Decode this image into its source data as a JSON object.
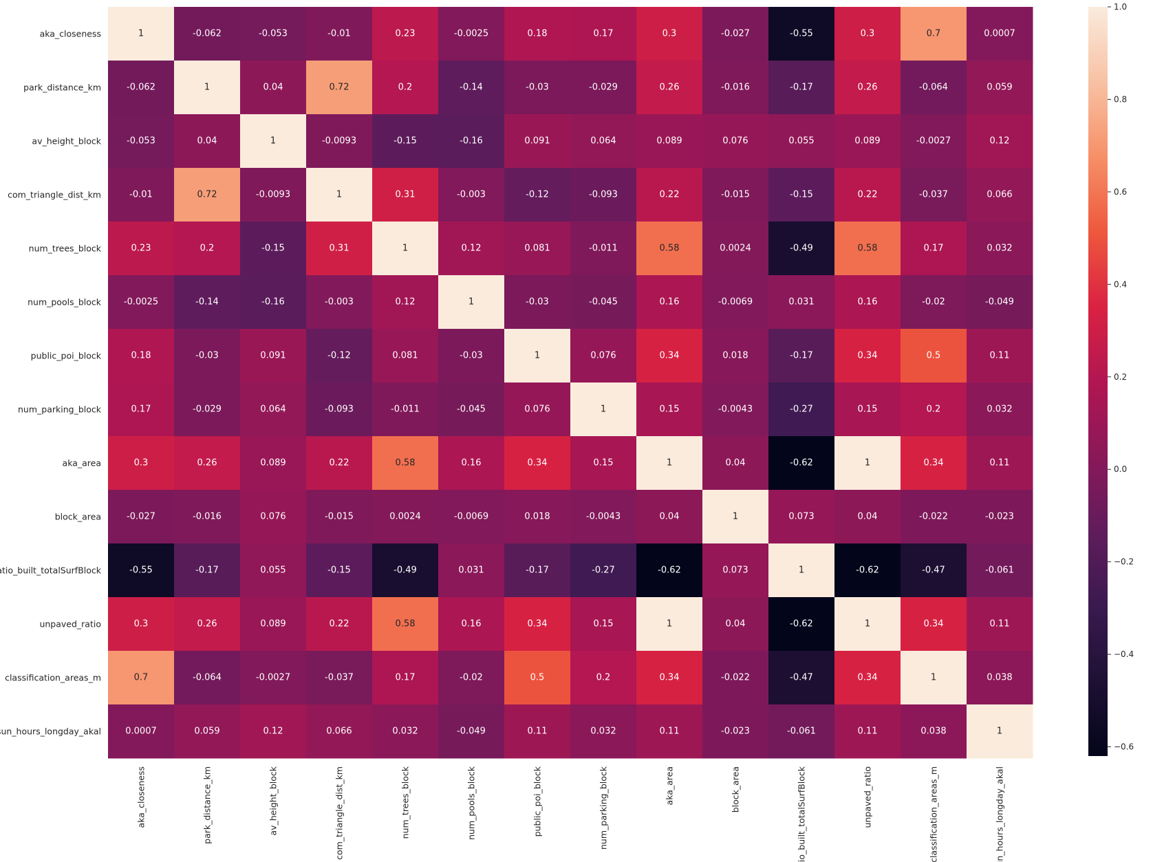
{
  "chart_data": {
    "type": "heatmap",
    "title": "",
    "xlabel": "",
    "ylabel": "",
    "variables": [
      "aka_closeness",
      "park_distance_km",
      "av_height_block",
      "com_triangle_dist_km",
      "num_trees_block",
      "num_pools_block",
      "public_poi_block",
      "num_parking_block",
      "aka_area",
      "block_area",
      "ratio_built_totalSurfBlock",
      "unpaved_ratio",
      "classification_areas_m",
      "sun_hours_longday_akal"
    ],
    "labels": [
      [
        "1",
        "-0.062",
        "-0.053",
        "-0.01",
        "0.23",
        "-0.0025",
        "0.18",
        "0.17",
        "0.3",
        "-0.027",
        "-0.55",
        "0.3",
        "0.7",
        "0.0007"
      ],
      [
        "-0.062",
        "1",
        "0.04",
        "0.72",
        "0.2",
        "-0.14",
        "-0.03",
        "-0.029",
        "0.26",
        "-0.016",
        "-0.17",
        "0.26",
        "-0.064",
        "0.059"
      ],
      [
        "-0.053",
        "0.04",
        "1",
        "-0.0093",
        "-0.15",
        "-0.16",
        "0.091",
        "0.064",
        "0.089",
        "0.076",
        "0.055",
        "0.089",
        "-0.0027",
        "0.12"
      ],
      [
        "-0.01",
        "0.72",
        "-0.0093",
        "1",
        "0.31",
        "-0.003",
        "-0.12",
        "-0.093",
        "0.22",
        "-0.015",
        "-0.15",
        "0.22",
        "-0.037",
        "0.066"
      ],
      [
        "0.23",
        "0.2",
        "-0.15",
        "0.31",
        "1",
        "0.12",
        "0.081",
        "-0.011",
        "0.58",
        "0.0024",
        "-0.49",
        "0.58",
        "0.17",
        "0.032"
      ],
      [
        "-0.0025",
        "-0.14",
        "-0.16",
        "-0.003",
        "0.12",
        "1",
        "-0.03",
        "-0.045",
        "0.16",
        "-0.0069",
        "0.031",
        "0.16",
        "-0.02",
        "-0.049"
      ],
      [
        "0.18",
        "-0.03",
        "0.091",
        "-0.12",
        "0.081",
        "-0.03",
        "1",
        "0.076",
        "0.34",
        "0.018",
        "-0.17",
        "0.34",
        "0.5",
        "0.11"
      ],
      [
        "0.17",
        "-0.029",
        "0.064",
        "-0.093",
        "-0.011",
        "-0.045",
        "0.076",
        "1",
        "0.15",
        "-0.0043",
        "-0.27",
        "0.15",
        "0.2",
        "0.032"
      ],
      [
        "0.3",
        "0.26",
        "0.089",
        "0.22",
        "0.58",
        "0.16",
        "0.34",
        "0.15",
        "1",
        "0.04",
        "-0.62",
        "1",
        "0.34",
        "0.11"
      ],
      [
        "-0.027",
        "-0.016",
        "0.076",
        "-0.015",
        "0.0024",
        "-0.0069",
        "0.018",
        "-0.0043",
        "0.04",
        "1",
        "0.073",
        "0.04",
        "-0.022",
        "-0.023"
      ],
      [
        "-0.55",
        "-0.17",
        "0.055",
        "-0.15",
        "-0.49",
        "0.031",
        "-0.17",
        "-0.27",
        "-0.62",
        "0.073",
        "1",
        "-0.62",
        "-0.47",
        "-0.061"
      ],
      [
        "0.3",
        "0.26",
        "0.089",
        "0.22",
        "0.58",
        "0.16",
        "0.34",
        "0.15",
        "1",
        "0.04",
        "-0.62",
        "1",
        "0.34",
        "0.11"
      ],
      [
        "0.7",
        "-0.064",
        "-0.0027",
        "-0.037",
        "0.17",
        "-0.02",
        "0.5",
        "0.2",
        "0.34",
        "-0.022",
        "-0.47",
        "0.34",
        "1",
        "0.038"
      ],
      [
        "0.0007",
        "0.059",
        "0.12",
        "0.066",
        "0.032",
        "-0.049",
        "0.11",
        "0.032",
        "0.11",
        "-0.023",
        "-0.061",
        "0.11",
        "0.038",
        "1"
      ]
    ],
    "colorbar": {
      "range": [
        -0.62,
        1
      ],
      "ticks": [
        "1.0",
        "0.8",
        "0.6",
        "0.4",
        "0.2",
        "0.0",
        "−0.2",
        "−0.4",
        "−0.6"
      ],
      "tick_values": [
        1.0,
        0.8,
        0.6,
        0.4,
        0.2,
        0.0,
        -0.2,
        -0.4,
        -0.6
      ],
      "colormap": "rocket"
    },
    "grid": false,
    "legend": "colorbar-right",
    "colors": {
      "low": "#03051a",
      "mid": "#cb1b4f",
      "high": "#faebdd",
      "text_light": "#ffffff",
      "text_dark": "#262626"
    }
  }
}
